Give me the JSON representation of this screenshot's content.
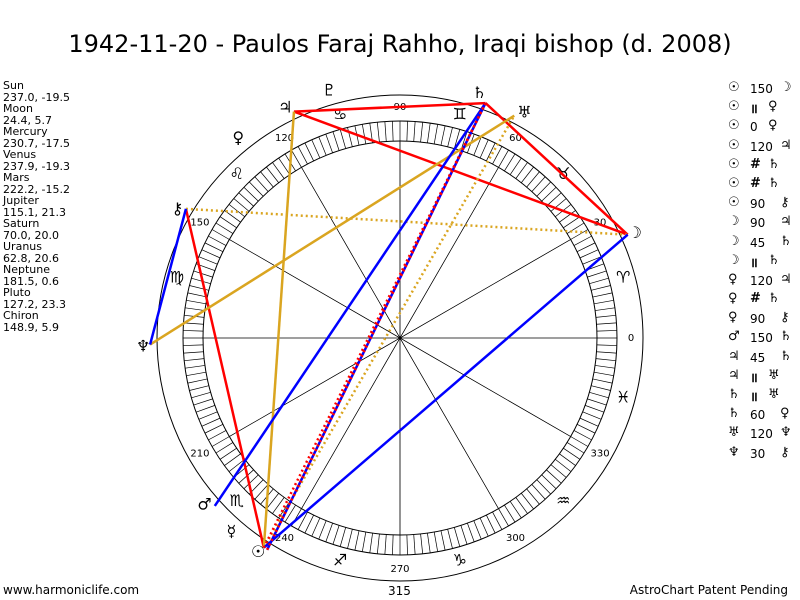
{
  "title": "1942-11-20 - Paulos Faraj Rahho, Iraqi bishop (d. 2008)",
  "positions": [
    {
      "name": "Sun",
      "value": "237.0, -19.5"
    },
    {
      "name": "Moon",
      "value": "24.4, 5.7"
    },
    {
      "name": "Mercury",
      "value": "230.7, -17.5"
    },
    {
      "name": "Venus",
      "value": "237.9, -19.3"
    },
    {
      "name": "Mars",
      "value": "222.2, -15.2"
    },
    {
      "name": "Jupiter",
      "value": "115.1, 21.3"
    },
    {
      "name": "Saturn",
      "value": "70.0, 20.0"
    },
    {
      "name": "Uranus",
      "value": "62.8, 20.6"
    },
    {
      "name": "Neptune",
      "value": "181.5, 0.6"
    },
    {
      "name": "Pluto",
      "value": "127.2, 23.3"
    },
    {
      "name": "Chiron",
      "value": "148.9, 5.9"
    }
  ],
  "aspects": [
    {
      "a": "☉",
      "sym": "",
      "num": "150",
      "b": "☽"
    },
    {
      "a": "☉",
      "sym": "॥",
      "num": "",
      "b": "♀"
    },
    {
      "a": "☉",
      "sym": "",
      "num": "0",
      "b": "♀"
    },
    {
      "a": "☉",
      "sym": "",
      "num": "120",
      "b": "♃"
    },
    {
      "a": "☉",
      "sym": "#",
      "num": "",
      "b": "♄"
    },
    {
      "a": "☉",
      "sym": "#",
      "num": "",
      "b": "♄"
    },
    {
      "a": "☉",
      "sym": "",
      "num": "90",
      "b": "⚷"
    },
    {
      "a": "☽",
      "sym": "",
      "num": "90",
      "b": "♃"
    },
    {
      "a": "☽",
      "sym": "",
      "num": "45",
      "b": "♄"
    },
    {
      "a": "☽",
      "sym": "॥",
      "num": "",
      "b": "♄"
    },
    {
      "a": "♀",
      "sym": "",
      "num": "120",
      "b": "♃"
    },
    {
      "a": "♀",
      "sym": "#",
      "num": "",
      "b": "♄"
    },
    {
      "a": "♀",
      "sym": "",
      "num": "90",
      "b": "⚷"
    },
    {
      "a": "♂",
      "sym": "",
      "num": "150",
      "b": "♄"
    },
    {
      "a": "♃",
      "sym": "",
      "num": "45",
      "b": "♄"
    },
    {
      "a": "♃",
      "sym": "॥",
      "num": "",
      "b": "♅"
    },
    {
      "a": "♄",
      "sym": "॥",
      "num": "",
      "b": "♅"
    },
    {
      "a": "♄",
      "sym": "",
      "num": "60",
      "b": "♀"
    },
    {
      "a": "♅",
      "sym": "",
      "num": "120",
      "b": "♆"
    },
    {
      "a": "♆",
      "sym": "",
      "num": "30",
      "b": "⚷"
    }
  ],
  "degree_labels": [
    {
      "deg": 0,
      "text": "0"
    },
    {
      "deg": 30,
      "text": "30"
    },
    {
      "deg": 60,
      "text": "60"
    },
    {
      "deg": 90,
      "text": "90"
    },
    {
      "deg": 120,
      "text": "120"
    },
    {
      "deg": 150,
      "text": "150"
    },
    {
      "deg": 210,
      "text": "210"
    },
    {
      "deg": 240,
      "text": "240"
    },
    {
      "deg": 270,
      "text": "270"
    },
    {
      "deg": 300,
      "text": "300"
    },
    {
      "deg": 330,
      "text": "330"
    }
  ],
  "sign_glyphs": [
    {
      "deg": 15,
      "glyph": "♈"
    },
    {
      "deg": 45,
      "glyph": "♉"
    },
    {
      "deg": 75,
      "glyph": "♊"
    },
    {
      "deg": 105,
      "glyph": "♋"
    },
    {
      "deg": 135,
      "glyph": "♌"
    },
    {
      "deg": 165,
      "glyph": "♍"
    },
    {
      "deg": 225,
      "glyph": "♏"
    },
    {
      "deg": 255,
      "glyph": "♐"
    },
    {
      "deg": 285,
      "glyph": "♑"
    },
    {
      "deg": 315,
      "glyph": "♒"
    },
    {
      "deg": 345,
      "glyph": "♓"
    }
  ],
  "planets": [
    {
      "key": "sun",
      "glyph": "☉",
      "deg": 237.0
    },
    {
      "key": "moon",
      "glyph": "☽",
      "deg": 24.4
    },
    {
      "key": "mercury",
      "glyph": "☿",
      "deg": 230.7
    },
    {
      "key": "venus",
      "glyph": "♀",
      "deg": 237.9
    },
    {
      "key": "mars",
      "glyph": "♂",
      "deg": 222.2
    },
    {
      "key": "jupiter",
      "glyph": "♃",
      "deg": 115.1
    },
    {
      "key": "saturn",
      "glyph": "♄",
      "deg": 70.0
    },
    {
      "key": "uranus",
      "glyph": "♅",
      "deg": 62.8
    },
    {
      "key": "neptune",
      "glyph": "♆",
      "deg": 181.5
    },
    {
      "key": "pluto",
      "glyph": "♇",
      "deg": 127.2
    },
    {
      "key": "chiron",
      "glyph": "⚷",
      "deg": 148.9
    }
  ],
  "planet_labels": [
    {
      "key": "jupiter",
      "glyph": "♃",
      "deg": 116.5
    },
    {
      "key": "venus",
      "glyph": "♀",
      "deg": 129
    },
    {
      "key": "saturn",
      "glyph": "♄",
      "deg": 72
    },
    {
      "key": "uranus",
      "glyph": "♅",
      "deg": 61
    },
    {
      "key": "chiron",
      "glyph": "⚷",
      "deg": 150
    },
    {
      "key": "neptune",
      "glyph": "♆",
      "deg": 182
    },
    {
      "key": "mars",
      "glyph": "♂",
      "deg": 220.5
    },
    {
      "key": "mercury",
      "glyph": "☿",
      "deg": 229
    },
    {
      "key": "sun",
      "glyph": "☉",
      "deg": 236.5
    },
    {
      "key": "pluto",
      "glyph": "♇",
      "deg": 106
    },
    {
      "key": "moon",
      "glyph": "☽",
      "deg": 24
    }
  ],
  "aspect_lines": [
    {
      "from": "jupiter",
      "to": "saturn",
      "color": "#ff0000",
      "style": "solid"
    },
    {
      "from": "jupiter",
      "to": "moon",
      "color": "#ff0000",
      "style": "solid"
    },
    {
      "from": "saturn",
      "to": "moon",
      "color": "#ff0000",
      "style": "solid"
    },
    {
      "from": "chiron",
      "to": "sun",
      "color": "#ff0000",
      "style": "solid"
    },
    {
      "from": "jupiter",
      "to": "sun",
      "color": "#daa520",
      "style": "solid"
    },
    {
      "from": "neptune",
      "to": "uranus",
      "color": "#daa520",
      "style": "solid"
    },
    {
      "from": "chiron",
      "to": "moon",
      "color": "#daa520",
      "style": "dotted"
    },
    {
      "from": "sun",
      "to": "uranus",
      "color": "#daa520",
      "style": "dotted"
    },
    {
      "from": "venus",
      "to": "saturn",
      "color": "#0000ff",
      "style": "solid"
    },
    {
      "from": "sun",
      "to": "moon",
      "color": "#0000ff",
      "style": "solid"
    },
    {
      "from": "mars",
      "to": "saturn",
      "color": "#0000ff",
      "style": "solid"
    },
    {
      "from": "neptune",
      "to": "chiron",
      "color": "#0000ff",
      "style": "solid"
    },
    {
      "from": "sun",
      "to": "saturn",
      "color": "#ff0000",
      "style": "dotted"
    },
    {
      "from": "venus",
      "to": "saturn",
      "color": "#ff0000",
      "style": "dotted"
    }
  ],
  "house_cusps": [
    0,
    30,
    60,
    90,
    120,
    150,
    180,
    210,
    240,
    270,
    300,
    330
  ],
  "footer": {
    "left": "www.harmoniclife.com",
    "middle": "315",
    "right": "AstroChart Patent Pending"
  },
  "colors": {
    "red": "#ff0000",
    "gold": "#daa520",
    "blue": "#0000ff"
  }
}
